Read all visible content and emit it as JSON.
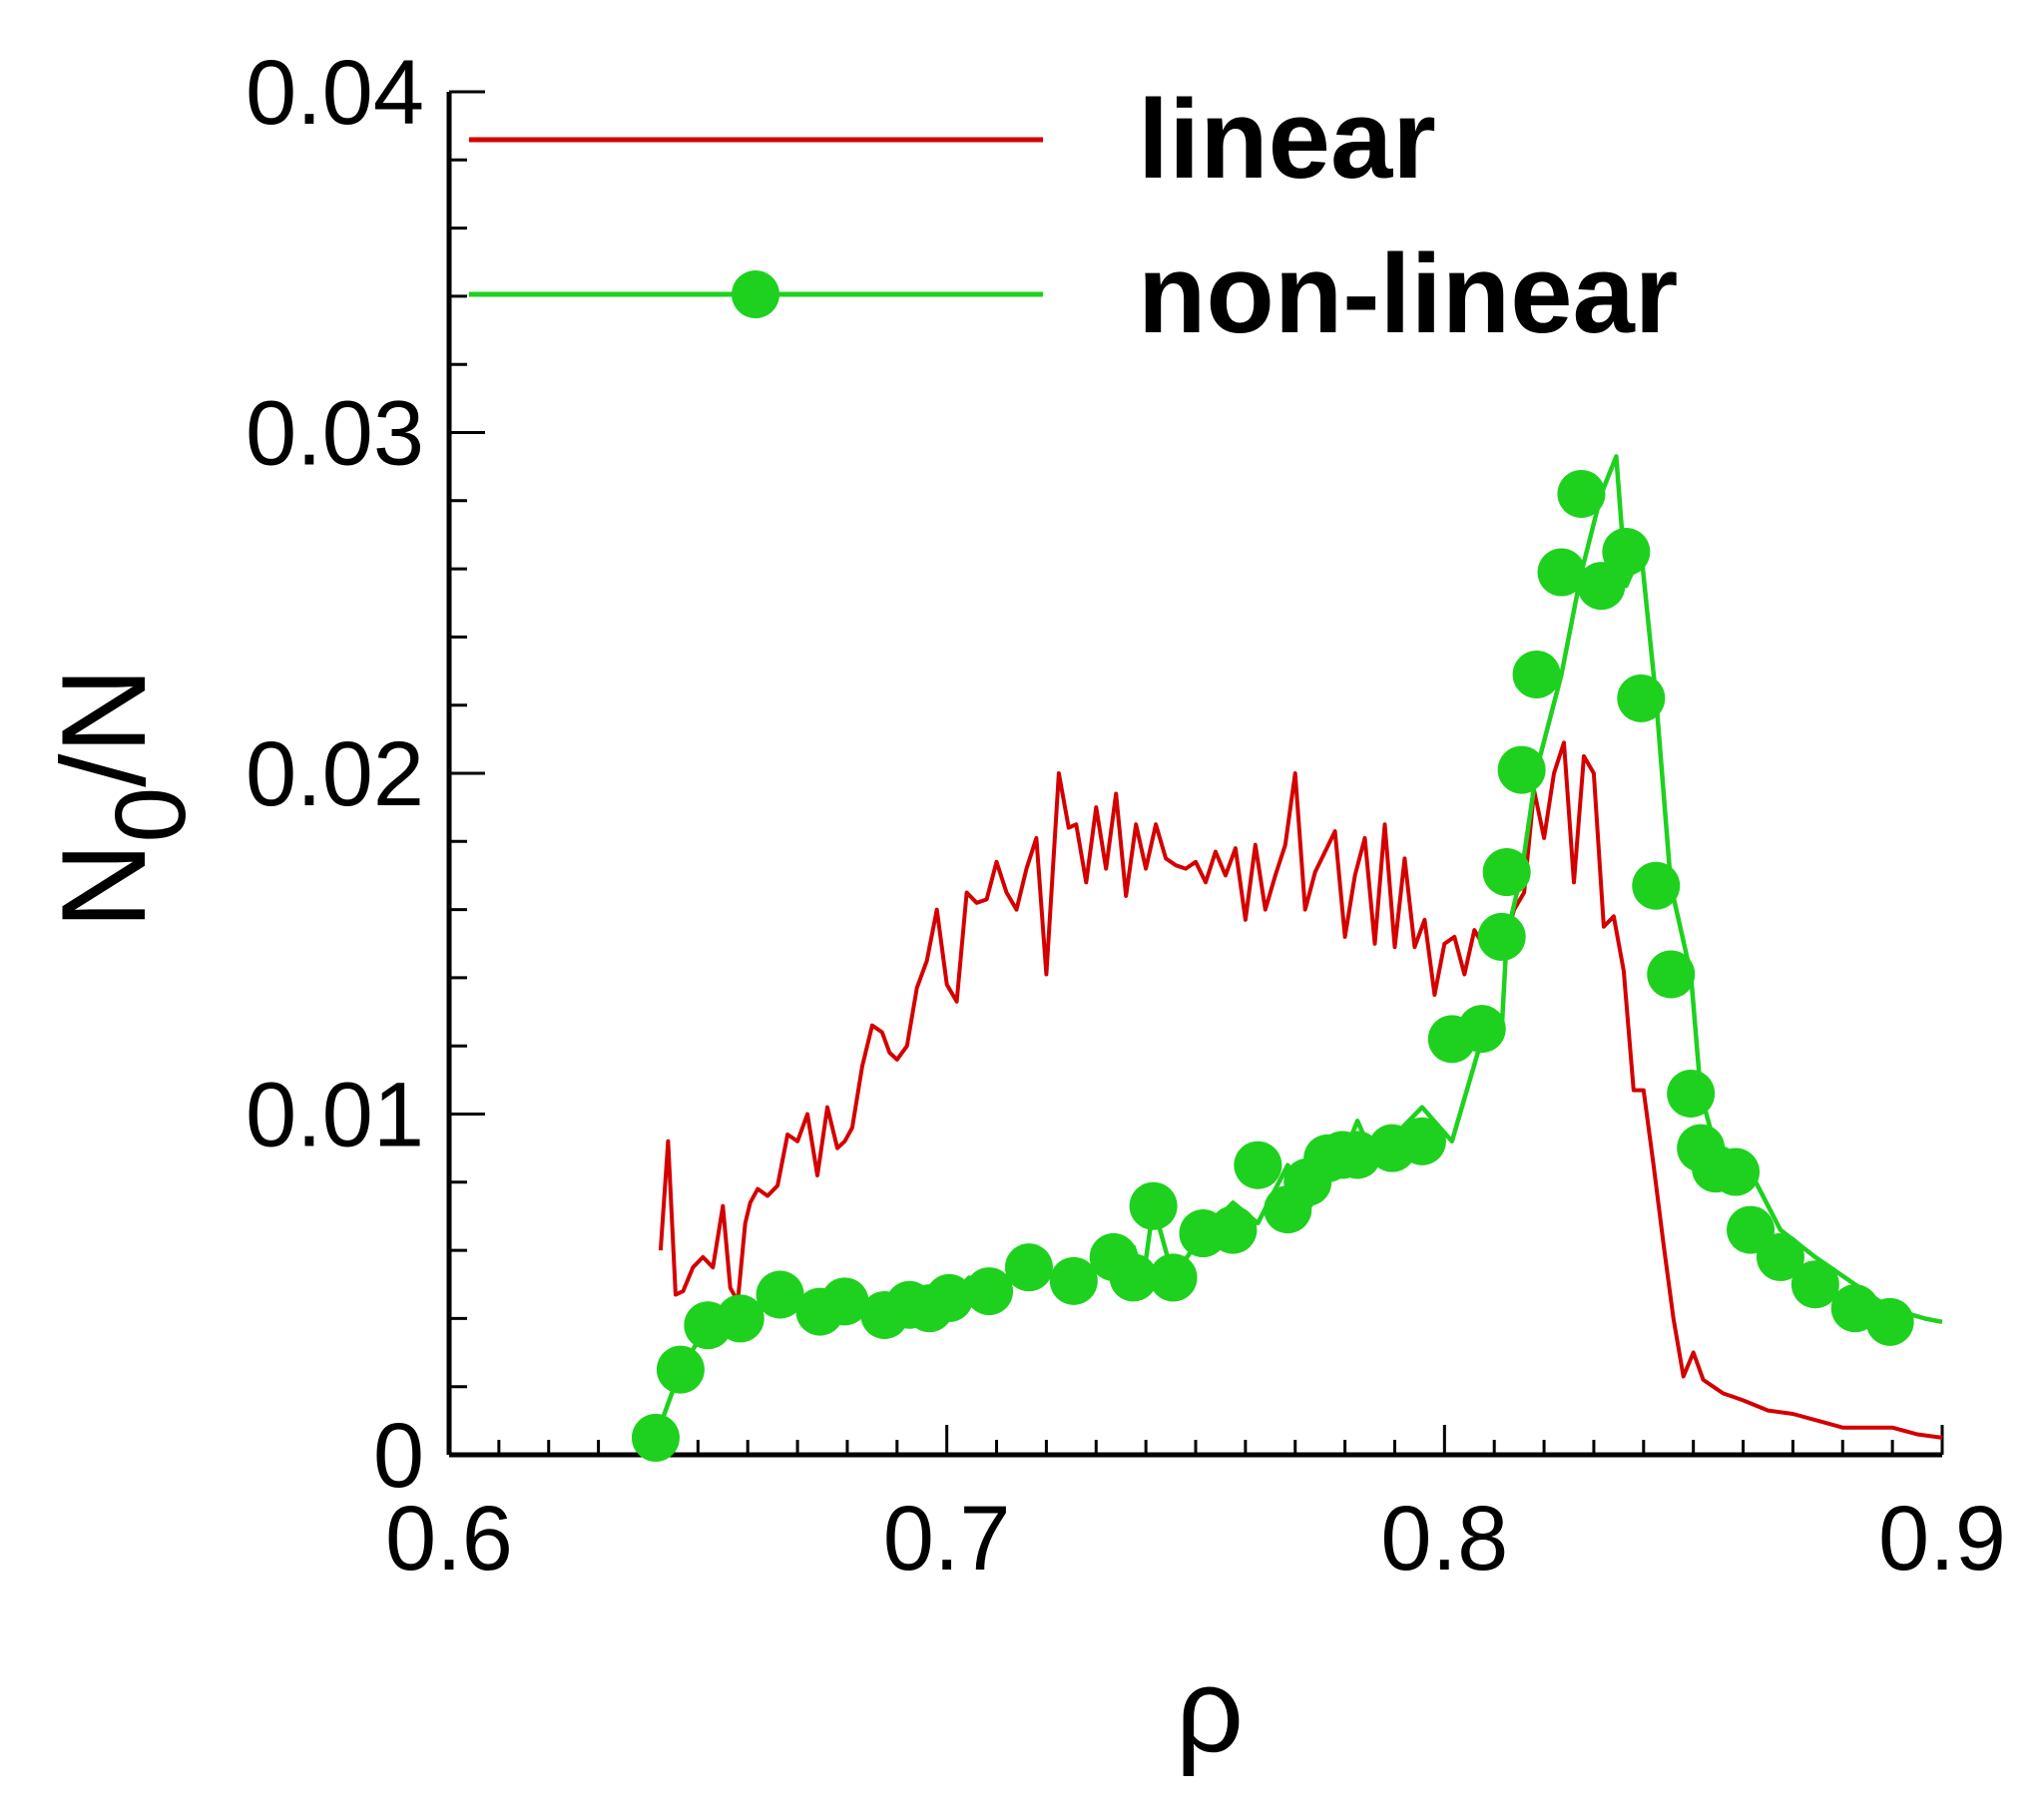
{
  "chart_data": {
    "type": "line",
    "xlabel": "ρ",
    "ylabel": {
      "main": "N",
      "sub": "0",
      "tail": "/N"
    },
    "xlim": [
      0.6,
      0.9
    ],
    "ylim": [
      0,
      0.04
    ],
    "xticks": [
      0.6,
      0.7,
      0.8,
      0.9
    ],
    "xtick_labels": [
      "0.6",
      "0.7",
      "0.8",
      "0.9"
    ],
    "yticks": [
      0,
      0.01,
      0.02,
      0.03,
      0.04
    ],
    "ytick_labels": [
      "0",
      "0.01",
      "0.02",
      "0.03",
      "0.04"
    ],
    "x_minor_step": 0.01,
    "y_minor_step": 0.002,
    "grid": false,
    "legend_position": "top-right",
    "series": [
      {
        "name": "linear",
        "color": "#d40000",
        "marker": "none",
        "x": [
          0.6425,
          0.644,
          0.6455,
          0.647,
          0.649,
          0.651,
          0.653,
          0.655,
          0.6565,
          0.658,
          0.6595,
          0.6605,
          0.662,
          0.664,
          0.666,
          0.668,
          0.67,
          0.672,
          0.674,
          0.676,
          0.678,
          0.6795,
          0.681,
          0.683,
          0.685,
          0.687,
          0.6885,
          0.69,
          0.692,
          0.694,
          0.696,
          0.698,
          0.7,
          0.702,
          0.704,
          0.706,
          0.708,
          0.71,
          0.712,
          0.714,
          0.716,
          0.718,
          0.72,
          0.7225,
          0.7245,
          0.726,
          0.728,
          0.73,
          0.732,
          0.734,
          0.736,
          0.738,
          0.74,
          0.742,
          0.744,
          0.746,
          0.748,
          0.75,
          0.752,
          0.754,
          0.756,
          0.758,
          0.76,
          0.762,
          0.764,
          0.766,
          0.768,
          0.77,
          0.772,
          0.774,
          0.776,
          0.778,
          0.78,
          0.782,
          0.784,
          0.786,
          0.788,
          0.79,
          0.792,
          0.794,
          0.796,
          0.798,
          0.8,
          0.802,
          0.804,
          0.806,
          0.808,
          0.81,
          0.812,
          0.814,
          0.816,
          0.818,
          0.82,
          0.822,
          0.824,
          0.826,
          0.828,
          0.83,
          0.832,
          0.834,
          0.836,
          0.838,
          0.84,
          0.842,
          0.844,
          0.846,
          0.848,
          0.85,
          0.852,
          0.854,
          0.856,
          0.858,
          0.86,
          0.865,
          0.87,
          0.875,
          0.88,
          0.885,
          0.89,
          0.895,
          0.9
        ],
        "y": [
          0.006,
          0.0092,
          0.0047,
          0.0048,
          0.0055,
          0.0058,
          0.0055,
          0.0073,
          0.0049,
          0.0045,
          0.0068,
          0.0074,
          0.0078,
          0.0076,
          0.0079,
          0.0094,
          0.0092,
          0.01,
          0.0082,
          0.0102,
          0.009,
          0.0092,
          0.0096,
          0.0114,
          0.0126,
          0.0124,
          0.0118,
          0.0116,
          0.012,
          0.0137,
          0.0145,
          0.016,
          0.0138,
          0.0133,
          0.0165,
          0.0162,
          0.0163,
          0.0174,
          0.0165,
          0.016,
          0.0172,
          0.0181,
          0.0141,
          0.02,
          0.0184,
          0.0185,
          0.0168,
          0.019,
          0.0172,
          0.0194,
          0.0164,
          0.0185,
          0.0172,
          0.0185,
          0.0175,
          0.0173,
          0.0172,
          0.0174,
          0.0168,
          0.0177,
          0.017,
          0.0178,
          0.0157,
          0.0179,
          0.016,
          0.017,
          0.0179,
          0.02,
          0.016,
          0.0171,
          0.0177,
          0.0183,
          0.0152,
          0.017,
          0.0181,
          0.015,
          0.0185,
          0.0149,
          0.0175,
          0.0149,
          0.0157,
          0.0135,
          0.015,
          0.0152,
          0.0141,
          0.0154,
          0.0149,
          0.0148,
          0.015,
          0.016,
          0.0165,
          0.0195,
          0.0181,
          0.02,
          0.0209,
          0.0168,
          0.0205,
          0.02,
          0.0155,
          0.0158,
          0.0142,
          0.0107,
          0.0107,
          0.0085,
          0.0062,
          0.004,
          0.0023,
          0.003,
          0.0022,
          0.002,
          0.0018,
          0.0017,
          0.0016,
          0.0013,
          0.0012,
          0.001,
          0.0008,
          0.0008,
          0.0008,
          0.0006,
          0.0005
        ],
        "markers_x": [],
        "markers_y": []
      },
      {
        "name": "non-linear",
        "color": "#1ed11e",
        "marker": "circle",
        "x": [
          0.6415,
          0.6465,
          0.652,
          0.656,
          0.6585,
          0.6665,
          0.6715,
          0.6745,
          0.6795,
          0.6875,
          0.6925,
          0.6965,
          0.7005,
          0.7045,
          0.7085,
          0.7165,
          0.7255,
          0.7335,
          0.7375,
          0.7395,
          0.7415,
          0.7455,
          0.7515,
          0.7575,
          0.7625,
          0.7685,
          0.7725,
          0.7765,
          0.7795,
          0.7825,
          0.7855,
          0.7895,
          0.7955,
          0.8015,
          0.8075,
          0.8115,
          0.8125,
          0.8155,
          0.8185,
          0.8235,
          0.8275,
          0.8315,
          0.8345,
          0.8365,
          0.8395,
          0.8425,
          0.8455,
          0.8495,
          0.8515,
          0.8545,
          0.8585,
          0.8615,
          0.8675,
          0.8745,
          0.8825,
          0.8895,
          0.8965,
          0.9
        ],
        "y": [
          0.0005,
          0.0025,
          0.0038,
          0.0035,
          0.004,
          0.0047,
          0.0042,
          0.0045,
          0.0045,
          0.0041,
          0.0044,
          0.0043,
          0.0046,
          0.0052,
          0.0048,
          0.0055,
          0.0051,
          0.0058,
          0.0061,
          0.0052,
          0.0073,
          0.0052,
          0.0065,
          0.0074,
          0.0068,
          0.0085,
          0.0072,
          0.008,
          0.0087,
          0.0098,
          0.0088,
          0.0093,
          0.0102,
          0.0092,
          0.0122,
          0.0125,
          0.0152,
          0.0171,
          0.0201,
          0.0229,
          0.0259,
          0.0282,
          0.0293,
          0.0255,
          0.0265,
          0.0222,
          0.0167,
          0.0141,
          0.0106,
          0.009,
          0.0084,
          0.0083,
          0.0066,
          0.0058,
          0.005,
          0.0043,
          0.004,
          0.0039
        ],
        "markers_x": [
          0.6415,
          0.6465,
          0.652,
          0.6585,
          0.6665,
          0.6745,
          0.6795,
          0.6875,
          0.6925,
          0.6965,
          0.7005,
          0.7085,
          0.7165,
          0.7255,
          0.7335,
          0.7375,
          0.7415,
          0.7455,
          0.7515,
          0.7575,
          0.7625,
          0.7685,
          0.7725,
          0.7765,
          0.7795,
          0.7825,
          0.7895,
          0.7955,
          0.8015,
          0.8075,
          0.8115,
          0.8125,
          0.8155,
          0.8185,
          0.8235,
          0.8275,
          0.8315,
          0.8365,
          0.8395,
          0.8425,
          0.8455,
          0.8495,
          0.8515,
          0.8545,
          0.8585,
          0.8615,
          0.8675,
          0.8745,
          0.8825,
          0.8895
        ],
        "markers_y": [
          0.0005,
          0.0025,
          0.0038,
          0.004,
          0.0047,
          0.0042,
          0.0045,
          0.0041,
          0.0044,
          0.0043,
          0.0046,
          0.0048,
          0.0055,
          0.0051,
          0.0058,
          0.0052,
          0.0073,
          0.0052,
          0.0065,
          0.0066,
          0.0085,
          0.0072,
          0.008,
          0.0087,
          0.0088,
          0.0088,
          0.009,
          0.0092,
          0.0122,
          0.0125,
          0.0152,
          0.0171,
          0.0201,
          0.0229,
          0.0259,
          0.0282,
          0.0255,
          0.0265,
          0.0222,
          0.0167,
          0.0141,
          0.0106,
          0.009,
          0.0084,
          0.0083,
          0.0066,
          0.0058,
          0.005,
          0.0043,
          0.0039
        ]
      }
    ]
  }
}
